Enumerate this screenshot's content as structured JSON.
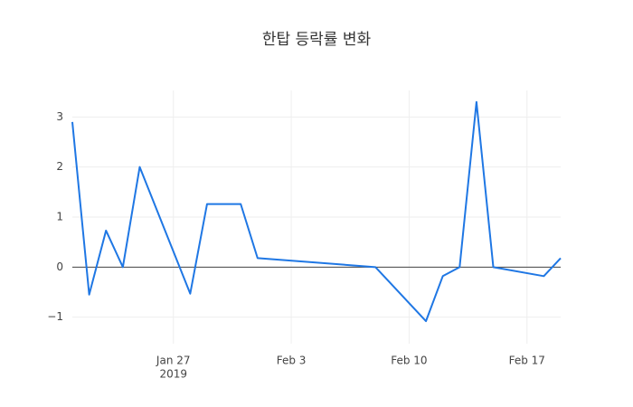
{
  "chart_data": {
    "type": "line",
    "title": "한탑 등락률 변화",
    "x": [
      "2019-01-21",
      "2019-01-22",
      "2019-01-23",
      "2019-01-24",
      "2019-01-25",
      "2019-01-28",
      "2019-01-29",
      "2019-01-31",
      "2019-02-01",
      "2019-02-08",
      "2019-02-11",
      "2019-02-12",
      "2019-02-13",
      "2019-02-14",
      "2019-02-15",
      "2019-02-18",
      "2019-02-19"
    ],
    "values": [
      2.9,
      -0.55,
      0.73,
      0,
      2.0,
      -0.53,
      1.26,
      1.26,
      0.18,
      0,
      -1.08,
      -0.18,
      0,
      3.3,
      0,
      -0.18,
      0.18
    ],
    "color": "#1f77e4",
    "xlim": [
      "2019-01-21",
      "2019-02-19"
    ],
    "xticks": [
      {
        "value": "2019-01-27",
        "label": "Jan 27",
        "sublabel": "2019"
      },
      {
        "value": "2019-02-03",
        "label": "Feb 3"
      },
      {
        "value": "2019-02-10",
        "label": "Feb 10"
      },
      {
        "value": "2019-02-17",
        "label": "Feb 17"
      }
    ],
    "ylim": [
      -1.53,
      3.53
    ],
    "yticks": [
      {
        "value": -1,
        "label": "−1"
      },
      0,
      1,
      2,
      3
    ],
    "grid": true,
    "zeroline": true
  }
}
